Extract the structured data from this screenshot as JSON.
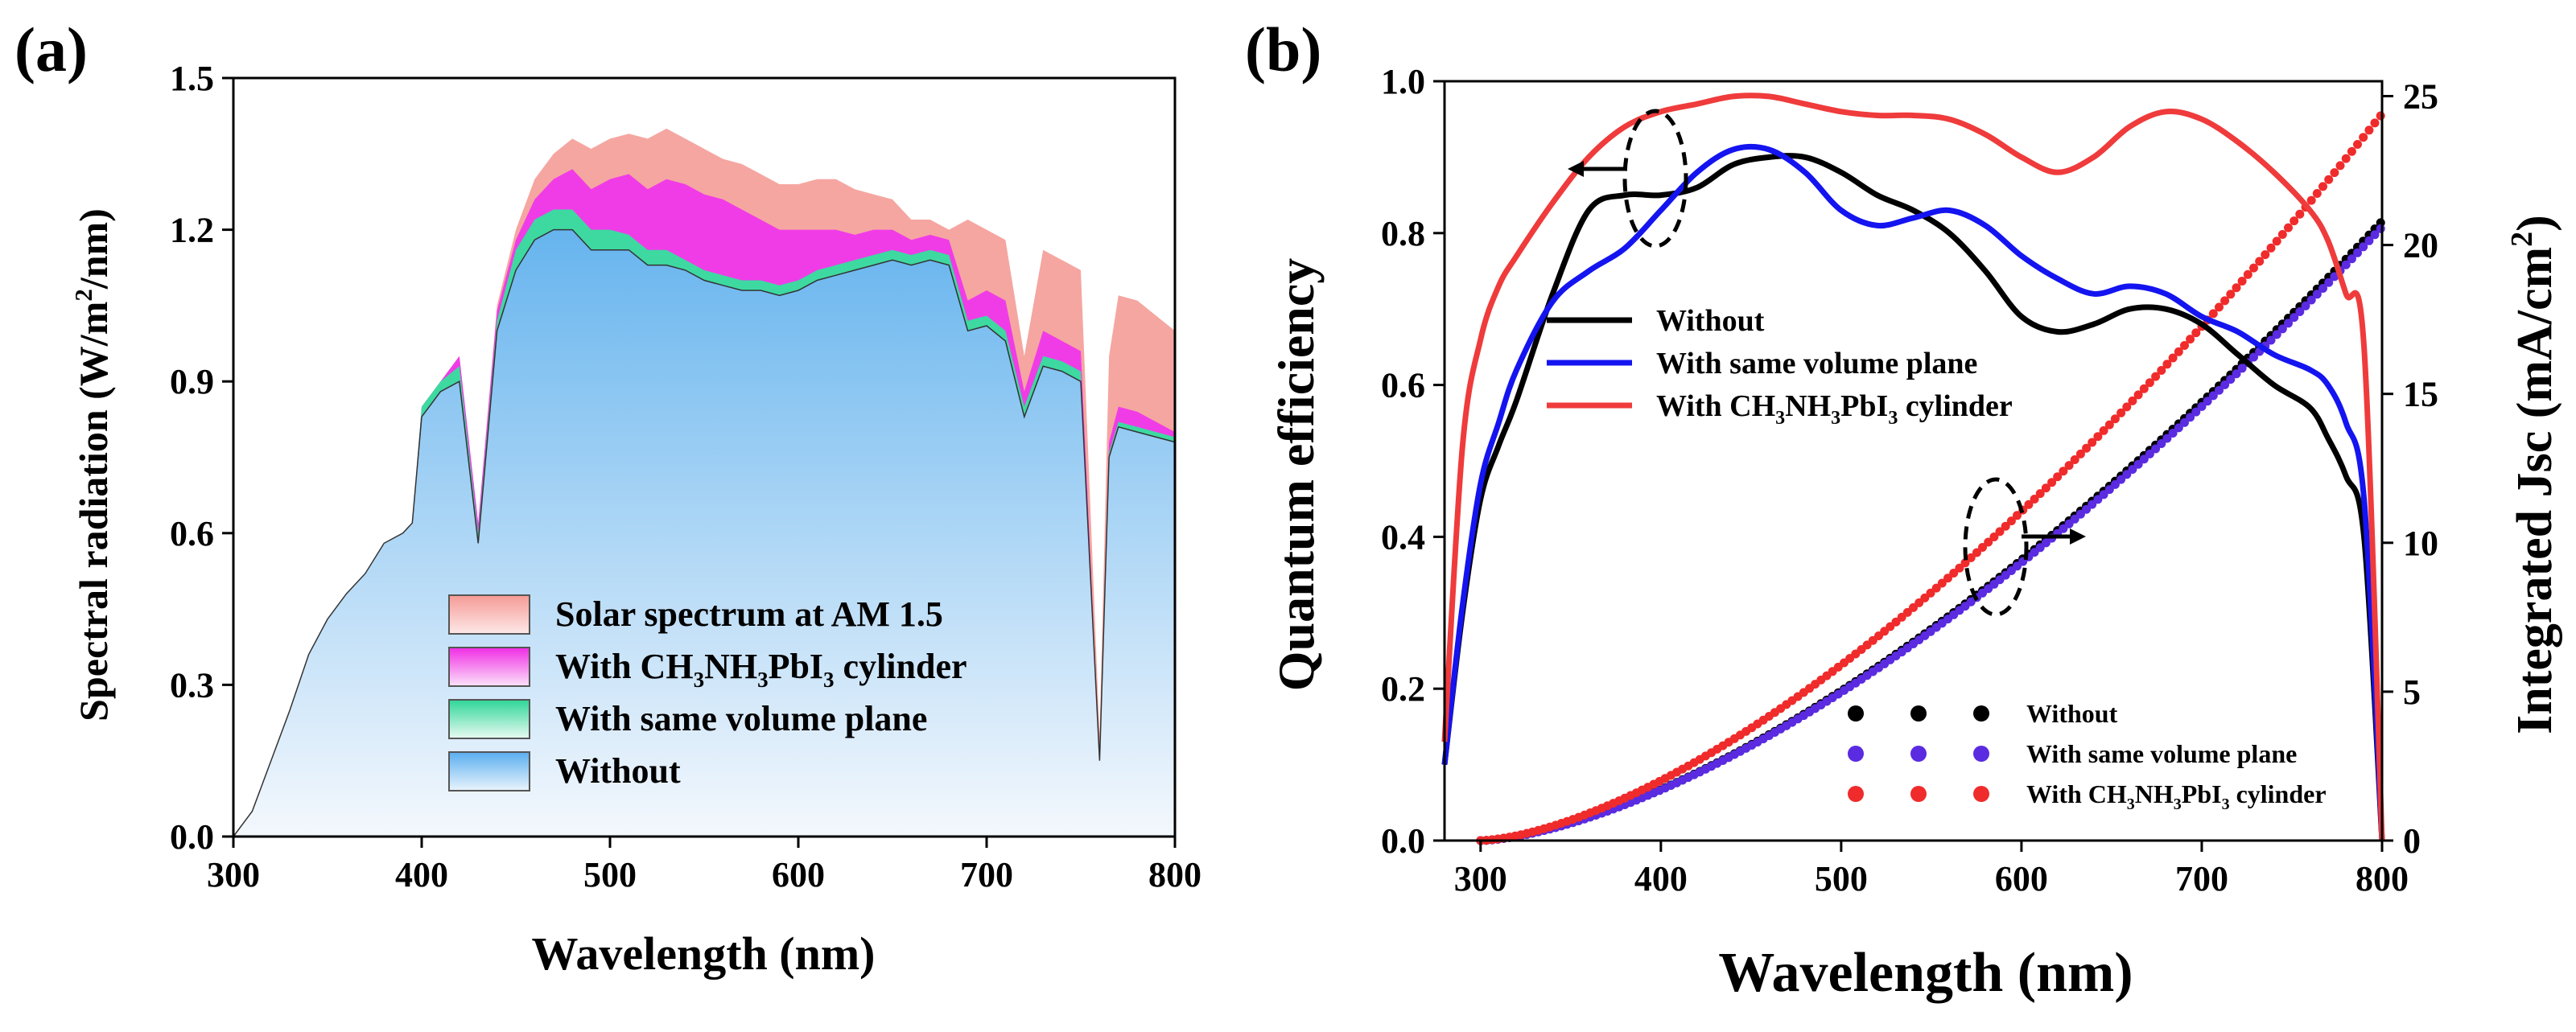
{
  "chart_data": [
    {
      "panel_label": "(a)",
      "type": "area",
      "xlabel": "Wavelength (nm)",
      "ylabel_parts": [
        "Spectral radiation (W/m",
        "2",
        "/nm)"
      ],
      "xlim": [
        300,
        800
      ],
      "ylim": [
        0,
        1.5
      ],
      "x_ticks": [
        "300",
        "400",
        "500",
        "600",
        "700",
        "800"
      ],
      "y_ticks": [
        "0.0",
        "0.3",
        "0.6",
        "0.9",
        "1.2",
        "1.5"
      ],
      "legend": [
        {
          "key": "am15",
          "parts": [
            [
              "Solar spectrum at AM 1.5",
              ""
            ]
          ]
        },
        {
          "key": "cyl",
          "parts": [
            [
              "With CH",
              ""
            ],
            [
              "3",
              "sub"
            ],
            [
              "NH",
              ""
            ],
            [
              "3",
              "sub"
            ],
            [
              "PbI",
              ""
            ],
            [
              "3",
              "sub"
            ],
            [
              " cylinder",
              ""
            ]
          ]
        },
        {
          "key": "plane",
          "parts": [
            [
              "With same volume plane",
              ""
            ]
          ]
        },
        {
          "key": "without",
          "parts": [
            [
              "Without",
              ""
            ]
          ]
        }
      ],
      "colors": {
        "am15": "#f5a6a1",
        "cyl": "#f03ce6",
        "plane": "#3dd9a1",
        "without": "#66b4ee",
        "without_light": "#f2f7fd"
      },
      "x": [
        300,
        310,
        320,
        330,
        340,
        350,
        360,
        370,
        380,
        390,
        395,
        400,
        410,
        420,
        430,
        440,
        450,
        460,
        470,
        480,
        490,
        500,
        510,
        520,
        530,
        540,
        550,
        560,
        570,
        580,
        590,
        600,
        610,
        620,
        630,
        640,
        650,
        660,
        670,
        680,
        690,
        700,
        710,
        720,
        730,
        740,
        750,
        760,
        765,
        770,
        780,
        790,
        800
      ],
      "series": [
        {
          "name": "Solar spectrum at AM 1.5",
          "values": [
            0.0,
            0.05,
            0.15,
            0.25,
            0.36,
            0.43,
            0.48,
            0.52,
            0.58,
            0.6,
            0.62,
            0.85,
            0.9,
            0.95,
            0.62,
            1.05,
            1.2,
            1.3,
            1.35,
            1.38,
            1.36,
            1.38,
            1.39,
            1.38,
            1.4,
            1.38,
            1.36,
            1.34,
            1.33,
            1.31,
            1.29,
            1.29,
            1.3,
            1.3,
            1.28,
            1.27,
            1.26,
            1.22,
            1.22,
            1.2,
            1.22,
            1.2,
            1.18,
            0.95,
            1.16,
            1.14,
            1.12,
            0.2,
            0.95,
            1.07,
            1.06,
            1.03,
            1.0
          ]
        },
        {
          "name": "With CH3NH3PbI3 cylinder",
          "values": [
            0.0,
            0.05,
            0.15,
            0.25,
            0.36,
            0.43,
            0.48,
            0.52,
            0.58,
            0.6,
            0.62,
            0.85,
            0.9,
            0.95,
            0.62,
            1.04,
            1.18,
            1.26,
            1.3,
            1.32,
            1.28,
            1.3,
            1.31,
            1.28,
            1.3,
            1.29,
            1.27,
            1.26,
            1.24,
            1.22,
            1.2,
            1.2,
            1.2,
            1.2,
            1.19,
            1.2,
            1.2,
            1.18,
            1.19,
            1.18,
            1.06,
            1.08,
            1.06,
            0.88,
            1.0,
            0.98,
            0.96,
            0.16,
            0.78,
            0.85,
            0.84,
            0.82,
            0.8
          ]
        },
        {
          "name": "With same volume plane",
          "values": [
            0.0,
            0.05,
            0.15,
            0.25,
            0.36,
            0.43,
            0.48,
            0.52,
            0.58,
            0.6,
            0.62,
            0.85,
            0.9,
            0.93,
            0.6,
            1.02,
            1.16,
            1.22,
            1.24,
            1.24,
            1.2,
            1.2,
            1.19,
            1.16,
            1.16,
            1.14,
            1.12,
            1.11,
            1.1,
            1.1,
            1.09,
            1.1,
            1.12,
            1.13,
            1.14,
            1.15,
            1.16,
            1.15,
            1.16,
            1.15,
            1.02,
            1.03,
            1.0,
            0.85,
            0.95,
            0.94,
            0.92,
            0.15,
            0.76,
            0.82,
            0.81,
            0.8,
            0.79
          ]
        },
        {
          "name": "Without",
          "values": [
            0.0,
            0.05,
            0.15,
            0.25,
            0.36,
            0.43,
            0.48,
            0.52,
            0.58,
            0.6,
            0.62,
            0.83,
            0.88,
            0.9,
            0.58,
            1.0,
            1.12,
            1.18,
            1.2,
            1.2,
            1.16,
            1.16,
            1.16,
            1.13,
            1.13,
            1.12,
            1.1,
            1.09,
            1.08,
            1.08,
            1.07,
            1.08,
            1.1,
            1.11,
            1.12,
            1.13,
            1.14,
            1.13,
            1.14,
            1.13,
            1.0,
            1.01,
            0.98,
            0.83,
            0.93,
            0.92,
            0.9,
            0.15,
            0.75,
            0.81,
            0.8,
            0.79,
            0.78
          ]
        }
      ]
    },
    {
      "panel_label": "(b)",
      "type": "line",
      "xlabel": "Wavelength (nm)",
      "ylabel": "Quantum efficiency",
      "y2label_parts": [
        "Integrated Jsc (mA/cm",
        "2",
        ")"
      ],
      "xlim": [
        280,
        800
      ],
      "ylim": [
        0,
        1.0
      ],
      "y2lim": [
        0,
        25.5
      ],
      "x_ticks": [
        "300",
        "400",
        "500",
        "600",
        "700",
        "800"
      ],
      "y_ticks": [
        "0.0",
        "0.2",
        "0.4",
        "0.6",
        "0.8",
        "1.0"
      ],
      "y2_ticks": [
        "0",
        "5",
        "10",
        "15",
        "20",
        "25"
      ],
      "x": [
        280,
        290,
        300,
        310,
        320,
        340,
        360,
        380,
        400,
        420,
        440,
        460,
        480,
        500,
        520,
        540,
        560,
        580,
        600,
        620,
        640,
        660,
        680,
        700,
        720,
        740,
        760,
        770,
        780,
        790,
        800
      ],
      "qe_series": [
        {
          "name": "Without",
          "color": "#000000",
          "values": [
            0.1,
            0.3,
            0.45,
            0.52,
            0.58,
            0.72,
            0.83,
            0.85,
            0.85,
            0.86,
            0.89,
            0.9,
            0.9,
            0.88,
            0.85,
            0.83,
            0.8,
            0.75,
            0.69,
            0.67,
            0.68,
            0.7,
            0.7,
            0.68,
            0.64,
            0.6,
            0.57,
            0.53,
            0.48,
            0.4,
            0.0
          ]
        },
        {
          "name": "With same volume plane",
          "color": "#1414f0",
          "values": [
            0.1,
            0.31,
            0.47,
            0.55,
            0.62,
            0.71,
            0.75,
            0.78,
            0.83,
            0.88,
            0.91,
            0.91,
            0.88,
            0.83,
            0.81,
            0.82,
            0.83,
            0.81,
            0.77,
            0.74,
            0.72,
            0.73,
            0.72,
            0.69,
            0.67,
            0.64,
            0.62,
            0.6,
            0.55,
            0.45,
            0.0
          ]
        },
        {
          "name": "With CH3NH3PbI3 cylinder",
          "color": "#ef3b3b",
          "values": [
            0.13,
            0.52,
            0.66,
            0.73,
            0.77,
            0.84,
            0.9,
            0.94,
            0.96,
            0.97,
            0.98,
            0.98,
            0.97,
            0.96,
            0.955,
            0.955,
            0.95,
            0.93,
            0.9,
            0.88,
            0.9,
            0.94,
            0.96,
            0.95,
            0.92,
            0.88,
            0.83,
            0.79,
            0.72,
            0.65,
            0.0
          ]
        }
      ],
      "jsc_x_range": [
        300,
        800
      ],
      "jsc_series": [
        {
          "name": "Without",
          "color": "#000000",
          "end_value": 20.8
        },
        {
          "name": "With same volume plane",
          "color": "#5a2be0",
          "end_value": 20.6
        },
        {
          "name": "With CH3NH3PbI3 cylinder",
          "color": "#f02b2b",
          "end_value": 24.4
        }
      ],
      "legend": [
        {
          "key": "without",
          "color": "#000000",
          "parts": [
            [
              "Without",
              ""
            ]
          ]
        },
        {
          "key": "plane",
          "color": "#1414f0",
          "parts": [
            [
              "With same volume plane",
              ""
            ]
          ]
        },
        {
          "key": "cyl",
          "color": "#ef3b3b",
          "parts": [
            [
              "With CH",
              ""
            ],
            [
              "3",
              "sub"
            ],
            [
              "NH",
              ""
            ],
            [
              "3",
              "sub"
            ],
            [
              "PbI",
              ""
            ],
            [
              "3",
              "sub"
            ],
            [
              " cylinder",
              ""
            ]
          ]
        }
      ],
      "dot_legend": [
        {
          "key": "without",
          "color": "#000000",
          "parts": [
            [
              "Without",
              ""
            ]
          ]
        },
        {
          "key": "plane",
          "color": "#5a2be0",
          "parts": [
            [
              "With same volume plane",
              ""
            ]
          ]
        },
        {
          "key": "cyl",
          "color": "#f02b2b",
          "parts": [
            [
              "With CH",
              ""
            ],
            [
              "3",
              "sub"
            ],
            [
              "NH",
              ""
            ],
            [
              "3",
              "sub"
            ],
            [
              "PbI",
              ""
            ],
            [
              "3",
              "sub"
            ],
            [
              " cylinder",
              ""
            ]
          ]
        }
      ]
    }
  ]
}
